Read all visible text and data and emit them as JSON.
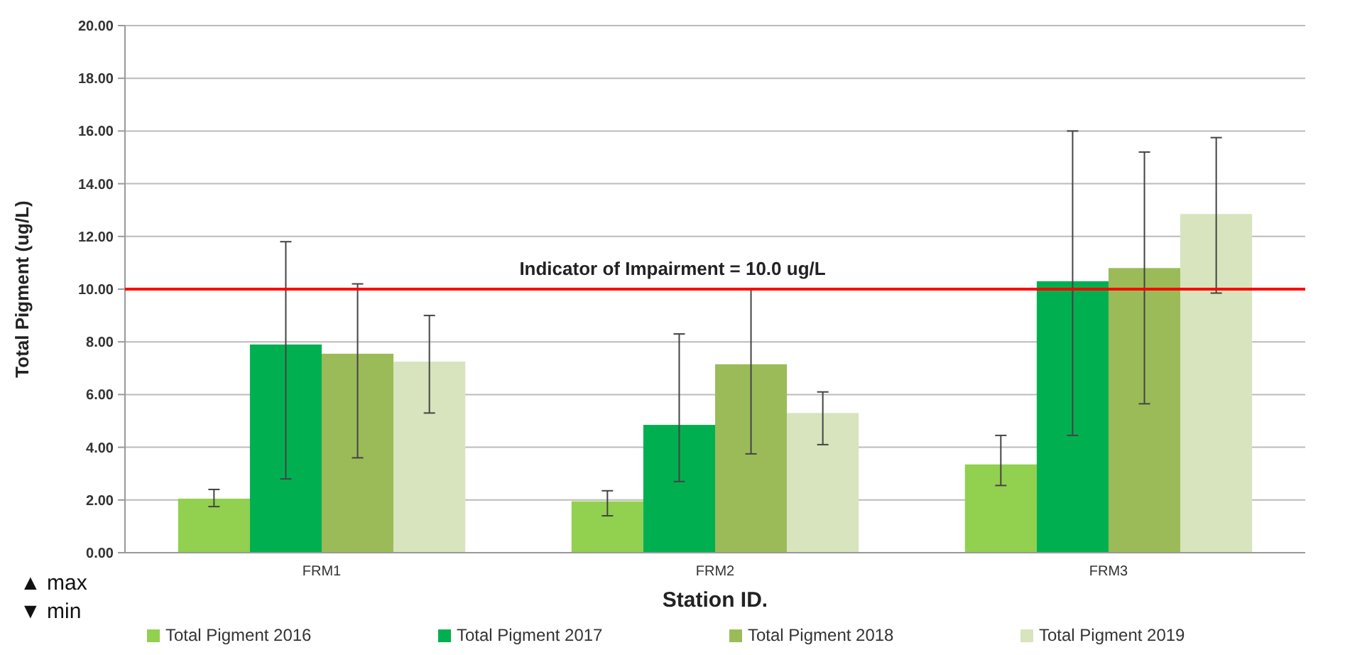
{
  "chart_data": {
    "type": "bar",
    "xlabel": "Station ID.",
    "ylabel": "Total Pigment (ug/L)",
    "categories": [
      "FRM1",
      "FRM2",
      "FRM3"
    ],
    "series": [
      {
        "name": "Total Pigment 2016",
        "color": "#92d050",
        "values": [
          2.05,
          1.95,
          3.35
        ],
        "errors": [
          [
            1.75,
            2.4
          ],
          [
            1.4,
            2.35
          ],
          [
            2.55,
            4.45
          ]
        ]
      },
      {
        "name": "Total Pigment 2017",
        "color": "#00b050",
        "values": [
          7.9,
          4.85,
          10.3
        ],
        "errors": [
          [
            2.8,
            11.8
          ],
          [
            2.7,
            8.3
          ],
          [
            4.45,
            16.0
          ]
        ]
      },
      {
        "name": "Total Pigment 2018",
        "color": "#9bbb59",
        "values": [
          7.55,
          7.15,
          10.8
        ],
        "errors": [
          [
            3.6,
            10.2
          ],
          [
            3.75,
            10.0
          ],
          [
            5.65,
            15.2
          ]
        ]
      },
      {
        "name": "Total Pigment 2019",
        "color": "#d7e4bd",
        "values": [
          7.25,
          5.3,
          12.85
        ],
        "errors": [
          [
            5.3,
            9.0
          ],
          [
            4.1,
            6.1
          ],
          [
            9.85,
            15.75
          ]
        ]
      }
    ],
    "ylim": [
      0,
      20
    ],
    "yticks": [
      {
        "value": 0,
        "label": "0.00"
      },
      {
        "value": 2,
        "label": "2.00"
      },
      {
        "value": 4,
        "label": "4.00"
      },
      {
        "value": 6,
        "label": "6.00"
      },
      {
        "value": 8,
        "label": "8.00"
      },
      {
        "value": 10,
        "label": "10.00"
      },
      {
        "value": 12,
        "label": "12.00"
      },
      {
        "value": 14,
        "label": "14.00"
      },
      {
        "value": 16,
        "label": "16.00"
      },
      {
        "value": 18,
        "label": "18.00"
      },
      {
        "value": 20,
        "label": "20.00"
      }
    ],
    "ref_lines": [
      {
        "axis": "y",
        "value": 10,
        "label": "Indicator of Impairment = 10.0 ug/L",
        "color": "#ff0000"
      }
    ],
    "annotations": [
      "▲ max",
      "▼ min"
    ],
    "grid": "y",
    "legend": "bottom"
  }
}
